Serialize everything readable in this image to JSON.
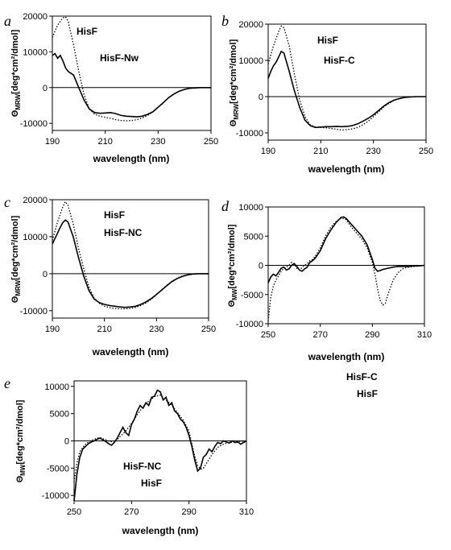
{
  "chart_data": [
    {
      "type": "line",
      "panel": "a",
      "xlabel": "wavelength (nm)",
      "ylabel": "Θ",
      "ylabel_sub": "MRW",
      "ylabel_unit": "[deg*cm²/dmol]",
      "xlim": [
        190,
        250
      ],
      "ylim": [
        -12000,
        20000
      ],
      "xticks": [
        190,
        210,
        230,
        250
      ],
      "yticks": [
        -10000,
        0,
        10000,
        20000
      ],
      "ytick_labels": [
        "-10000",
        "0",
        "10000",
        "20000"
      ],
      "series": [
        {
          "name": "HisF",
          "style": "dotted",
          "x": [
            190,
            192,
            194,
            195,
            196,
            198,
            200,
            202,
            204,
            206,
            208,
            210,
            212,
            214,
            216,
            218,
            220,
            222,
            224,
            226,
            228,
            230,
            232,
            234,
            236,
            238,
            240,
            242,
            244,
            246,
            248,
            250
          ],
          "y": [
            14000,
            17500,
            19500,
            19800,
            18500,
            12000,
            4500,
            -2000,
            -6000,
            -7500,
            -8000,
            -8300,
            -8600,
            -9000,
            -9200,
            -9300,
            -9200,
            -9000,
            -8500,
            -7800,
            -6800,
            -5500,
            -4200,
            -2800,
            -1800,
            -1000,
            -500,
            -200,
            -100,
            0,
            0,
            0
          ]
        },
        {
          "name": "HisF-Nw",
          "style": "solid",
          "x": [
            190,
            191,
            192,
            193,
            194,
            195,
            196,
            198,
            200,
            202,
            204,
            206,
            208,
            210,
            212,
            214,
            216,
            218,
            220,
            222,
            224,
            226,
            228,
            230,
            232,
            234,
            236,
            238,
            240,
            242,
            244,
            246,
            248,
            250
          ],
          "y": [
            9000,
            9500,
            8200,
            9000,
            7500,
            5500,
            4500,
            3500,
            0,
            -3500,
            -6000,
            -7000,
            -7200,
            -7100,
            -7000,
            -7300,
            -7800,
            -8000,
            -8100,
            -8200,
            -8000,
            -7500,
            -6800,
            -5500,
            -4200,
            -2800,
            -1800,
            -1000,
            -500,
            -200,
            -100,
            0,
            0,
            0
          ]
        }
      ]
    },
    {
      "type": "line",
      "panel": "b",
      "xlabel": "wavelength (nm)",
      "ylabel": "Θ",
      "ylabel_sub": "MRW",
      "ylabel_unit": "[deg*cm²/dmol]",
      "xlim": [
        190,
        250
      ],
      "ylim": [
        -12000,
        20000
      ],
      "xticks": [
        190,
        210,
        230,
        250
      ],
      "yticks": [
        -10000,
        0,
        10000,
        20000
      ],
      "ytick_labels": [
        "-10000",
        "0",
        "10000",
        "20000"
      ],
      "series": [
        {
          "name": "HisF",
          "style": "dotted",
          "x": [
            190,
            192,
            194,
            195,
            196,
            198,
            200,
            202,
            204,
            206,
            208,
            210,
            212,
            214,
            216,
            218,
            220,
            222,
            224,
            226,
            228,
            230,
            232,
            234,
            236,
            238,
            240,
            242,
            244,
            246,
            248,
            250
          ],
          "y": [
            9000,
            14000,
            18000,
            19500,
            19000,
            14000,
            6000,
            -1000,
            -5500,
            -7800,
            -8400,
            -8500,
            -8600,
            -8800,
            -9000,
            -9200,
            -9100,
            -8900,
            -8500,
            -7800,
            -6800,
            -5500,
            -4200,
            -2800,
            -1800,
            -1000,
            -500,
            -200,
            -100,
            0,
            0,
            0
          ]
        },
        {
          "name": "HisF-C",
          "style": "solid",
          "x": [
            190,
            191,
            192,
            193,
            194,
            195,
            196,
            198,
            200,
            202,
            204,
            206,
            208,
            210,
            212,
            214,
            216,
            218,
            220,
            222,
            224,
            226,
            228,
            230,
            232,
            234,
            236,
            238,
            240,
            242,
            244,
            246,
            248,
            250
          ],
          "y": [
            5000,
            7000,
            8500,
            9500,
            11000,
            12500,
            12000,
            7000,
            1500,
            -3000,
            -6500,
            -8000,
            -8500,
            -8400,
            -8300,
            -8300,
            -8200,
            -8300,
            -8200,
            -8000,
            -7500,
            -6800,
            -6000,
            -5000,
            -3800,
            -2600,
            -1600,
            -900,
            -500,
            -200,
            -100,
            0,
            0,
            0
          ]
        }
      ]
    },
    {
      "type": "line",
      "panel": "c",
      "xlabel": "wavelength (nm)",
      "ylabel": "Θ",
      "ylabel_sub": "MRW",
      "ylabel_unit": "[deg*cm²/dmol]",
      "xlim": [
        190,
        250
      ],
      "ylim": [
        -12000,
        20000
      ],
      "xticks": [
        190,
        210,
        230,
        250
      ],
      "yticks": [
        -10000,
        0,
        10000,
        20000
      ],
      "ytick_labels": [
        "-10000",
        "0",
        "10000",
        "20000"
      ],
      "series": [
        {
          "name": "HisF",
          "style": "dotted",
          "x": [
            190,
            192,
            194,
            195,
            196,
            198,
            200,
            202,
            204,
            206,
            208,
            210,
            212,
            214,
            216,
            218,
            220,
            222,
            224,
            226,
            228,
            230,
            232,
            234,
            236,
            238,
            240,
            242,
            244,
            246,
            248,
            250
          ],
          "y": [
            9000,
            14000,
            18000,
            19500,
            18500,
            13500,
            7000,
            1500,
            -3500,
            -6500,
            -8000,
            -8800,
            -9200,
            -9400,
            -9500,
            -9500,
            -9400,
            -9100,
            -8600,
            -7900,
            -6900,
            -5700,
            -4400,
            -3100,
            -2000,
            -1200,
            -600,
            -300,
            -100,
            0,
            0,
            0
          ]
        },
        {
          "name": "HisF-NC",
          "style": "solid",
          "x": [
            190,
            191,
            192,
            193,
            194,
            195,
            196,
            198,
            200,
            202,
            204,
            206,
            208,
            210,
            212,
            214,
            216,
            218,
            220,
            222,
            224,
            226,
            228,
            230,
            232,
            234,
            236,
            238,
            240,
            242,
            244,
            246,
            248,
            250
          ],
          "y": [
            8000,
            9500,
            11000,
            12500,
            13800,
            14500,
            14000,
            10000,
            4500,
            -500,
            -4500,
            -6800,
            -7800,
            -8300,
            -8600,
            -8800,
            -9000,
            -9100,
            -9000,
            -8800,
            -8300,
            -7600,
            -6700,
            -5600,
            -4400,
            -3200,
            -2100,
            -1300,
            -700,
            -300,
            -100,
            0,
            0,
            0
          ]
        }
      ]
    },
    {
      "type": "line",
      "panel": "d",
      "xlabel": "wavelength (nm)",
      "ylabel": "Θ",
      "ylabel_sub": "MW",
      "ylabel_unit": "[deg*cm²/dmol]",
      "xlim": [
        250,
        310
      ],
      "ylim": [
        -10000,
        10000
      ],
      "xticks": [
        250,
        270,
        290,
        310
      ],
      "yticks": [
        -10000,
        -5000,
        0,
        5000,
        10000
      ],
      "ytick_labels": [
        "-10000",
        "-5000",
        "0",
        "5000",
        "10000"
      ],
      "series": [
        {
          "name": "HisF-C",
          "style": "solid",
          "x": [
            250,
            251,
            252,
            253,
            254,
            255,
            256,
            257,
            258,
            259,
            260,
            261,
            262,
            263,
            264,
            265,
            266,
            267,
            268,
            270,
            272,
            274,
            276,
            278,
            279,
            280,
            282,
            284,
            286,
            288,
            290,
            291,
            292,
            293,
            294,
            296,
            298,
            300,
            302,
            304,
            306,
            308,
            310
          ],
          "y": [
            -3000,
            -2000,
            -1500,
            -1800,
            -1200,
            -500,
            -300,
            -800,
            -600,
            0,
            300,
            -200,
            -800,
            -1000,
            -600,
            -300,
            500,
            800,
            1200,
            2500,
            4500,
            6000,
            7300,
            8200,
            8300,
            8000,
            7000,
            6000,
            5000,
            3500,
            1000,
            -500,
            -1000,
            -900,
            -700,
            -500,
            -300,
            -200,
            -200,
            -200,
            -100,
            -100,
            0
          ]
        },
        {
          "name": "HisF",
          "style": "dotted",
          "x": [
            250,
            251,
            252,
            253,
            254,
            255,
            256,
            257,
            258,
            259,
            260,
            261,
            262,
            263,
            264,
            265,
            266,
            267,
            268,
            270,
            272,
            274,
            276,
            278,
            279,
            280,
            282,
            284,
            286,
            288,
            290,
            291,
            292,
            293,
            294,
            295,
            296,
            298,
            300,
            302,
            304,
            306,
            308,
            310
          ],
          "y": [
            -9500,
            -5500,
            -3500,
            -2500,
            -1800,
            -1000,
            -500,
            -300,
            0,
            500,
            200,
            -500,
            -800,
            -400,
            0,
            300,
            800,
            1000,
            1500,
            3000,
            5000,
            6500,
            7500,
            8100,
            8000,
            7800,
            6500,
            5500,
            4500,
            3000,
            500,
            -1500,
            -4000,
            -6000,
            -6800,
            -6500,
            -5000,
            -2500,
            -1200,
            -500,
            -300,
            -200,
            -100,
            0
          ]
        }
      ]
    },
    {
      "type": "line",
      "panel": "e",
      "xlabel": "wavelength (nm)",
      "ylabel": "Θ",
      "ylabel_sub": "MW",
      "ylabel_unit": "[deg*cm²/dmol]",
      "xlim": [
        250,
        310
      ],
      "ylim": [
        -11000,
        11000
      ],
      "xticks": [
        250,
        270,
        290,
        310
      ],
      "yticks": [
        -10000,
        -5000,
        0,
        5000,
        10000
      ],
      "ytick_labels": [
        "-10000",
        "-5000",
        "0",
        "5000",
        "10000"
      ],
      "series": [
        {
          "name": "HisF-NC",
          "style": "solid",
          "x": [
            250,
            251,
            252,
            253,
            254,
            255,
            256,
            257,
            258,
            259,
            260,
            261,
            262,
            263,
            264,
            265,
            266,
            267,
            268,
            269,
            270,
            271,
            272,
            273,
            274,
            275,
            276,
            277,
            278,
            279,
            280,
            281,
            282,
            283,
            284,
            285,
            286,
            287,
            288,
            289,
            290,
            291,
            292,
            293,
            294,
            295,
            296,
            297,
            298,
            299,
            300,
            301,
            302,
            303,
            304,
            305,
            306,
            307,
            308,
            309,
            310
          ],
          "y": [
            -11000,
            -6000,
            -3000,
            -1500,
            -1000,
            -500,
            -200,
            0,
            300,
            500,
            200,
            -100,
            -500,
            -800,
            -300,
            500,
            1500,
            2500,
            1500,
            1000,
            3000,
            4000,
            5500,
            6500,
            6000,
            7000,
            6500,
            8000,
            8200,
            9300,
            9000,
            7500,
            8000,
            6500,
            7000,
            5500,
            5000,
            4000,
            3500,
            2500,
            1000,
            -1000,
            -3500,
            -5500,
            -5000,
            -3000,
            -2500,
            -1500,
            -2000,
            -1000,
            -300,
            -500,
            0,
            -200,
            -400,
            0,
            -300,
            -200,
            -600,
            -300,
            0
          ]
        },
        {
          "name": "HisF",
          "style": "dotted",
          "x": [
            250,
            251,
            252,
            253,
            254,
            255,
            256,
            257,
            258,
            259,
            260,
            262,
            264,
            266,
            268,
            270,
            272,
            274,
            276,
            278,
            280,
            282,
            284,
            286,
            288,
            290,
            291,
            292,
            293,
            294,
            295,
            296,
            298,
            300,
            302,
            304,
            306,
            308,
            310
          ],
          "y": [
            -7500,
            -4000,
            -2000,
            -1200,
            -600,
            -200,
            100,
            300,
            500,
            600,
            400,
            0,
            -300,
            800,
            1800,
            3200,
            4800,
            6300,
            7300,
            8100,
            8400,
            7500,
            6500,
            5200,
            3800,
            1800,
            -500,
            -2800,
            -4500,
            -5200,
            -5000,
            -4200,
            -2500,
            -1200,
            -600,
            -300,
            -200,
            -100,
            0
          ]
        }
      ]
    }
  ]
}
